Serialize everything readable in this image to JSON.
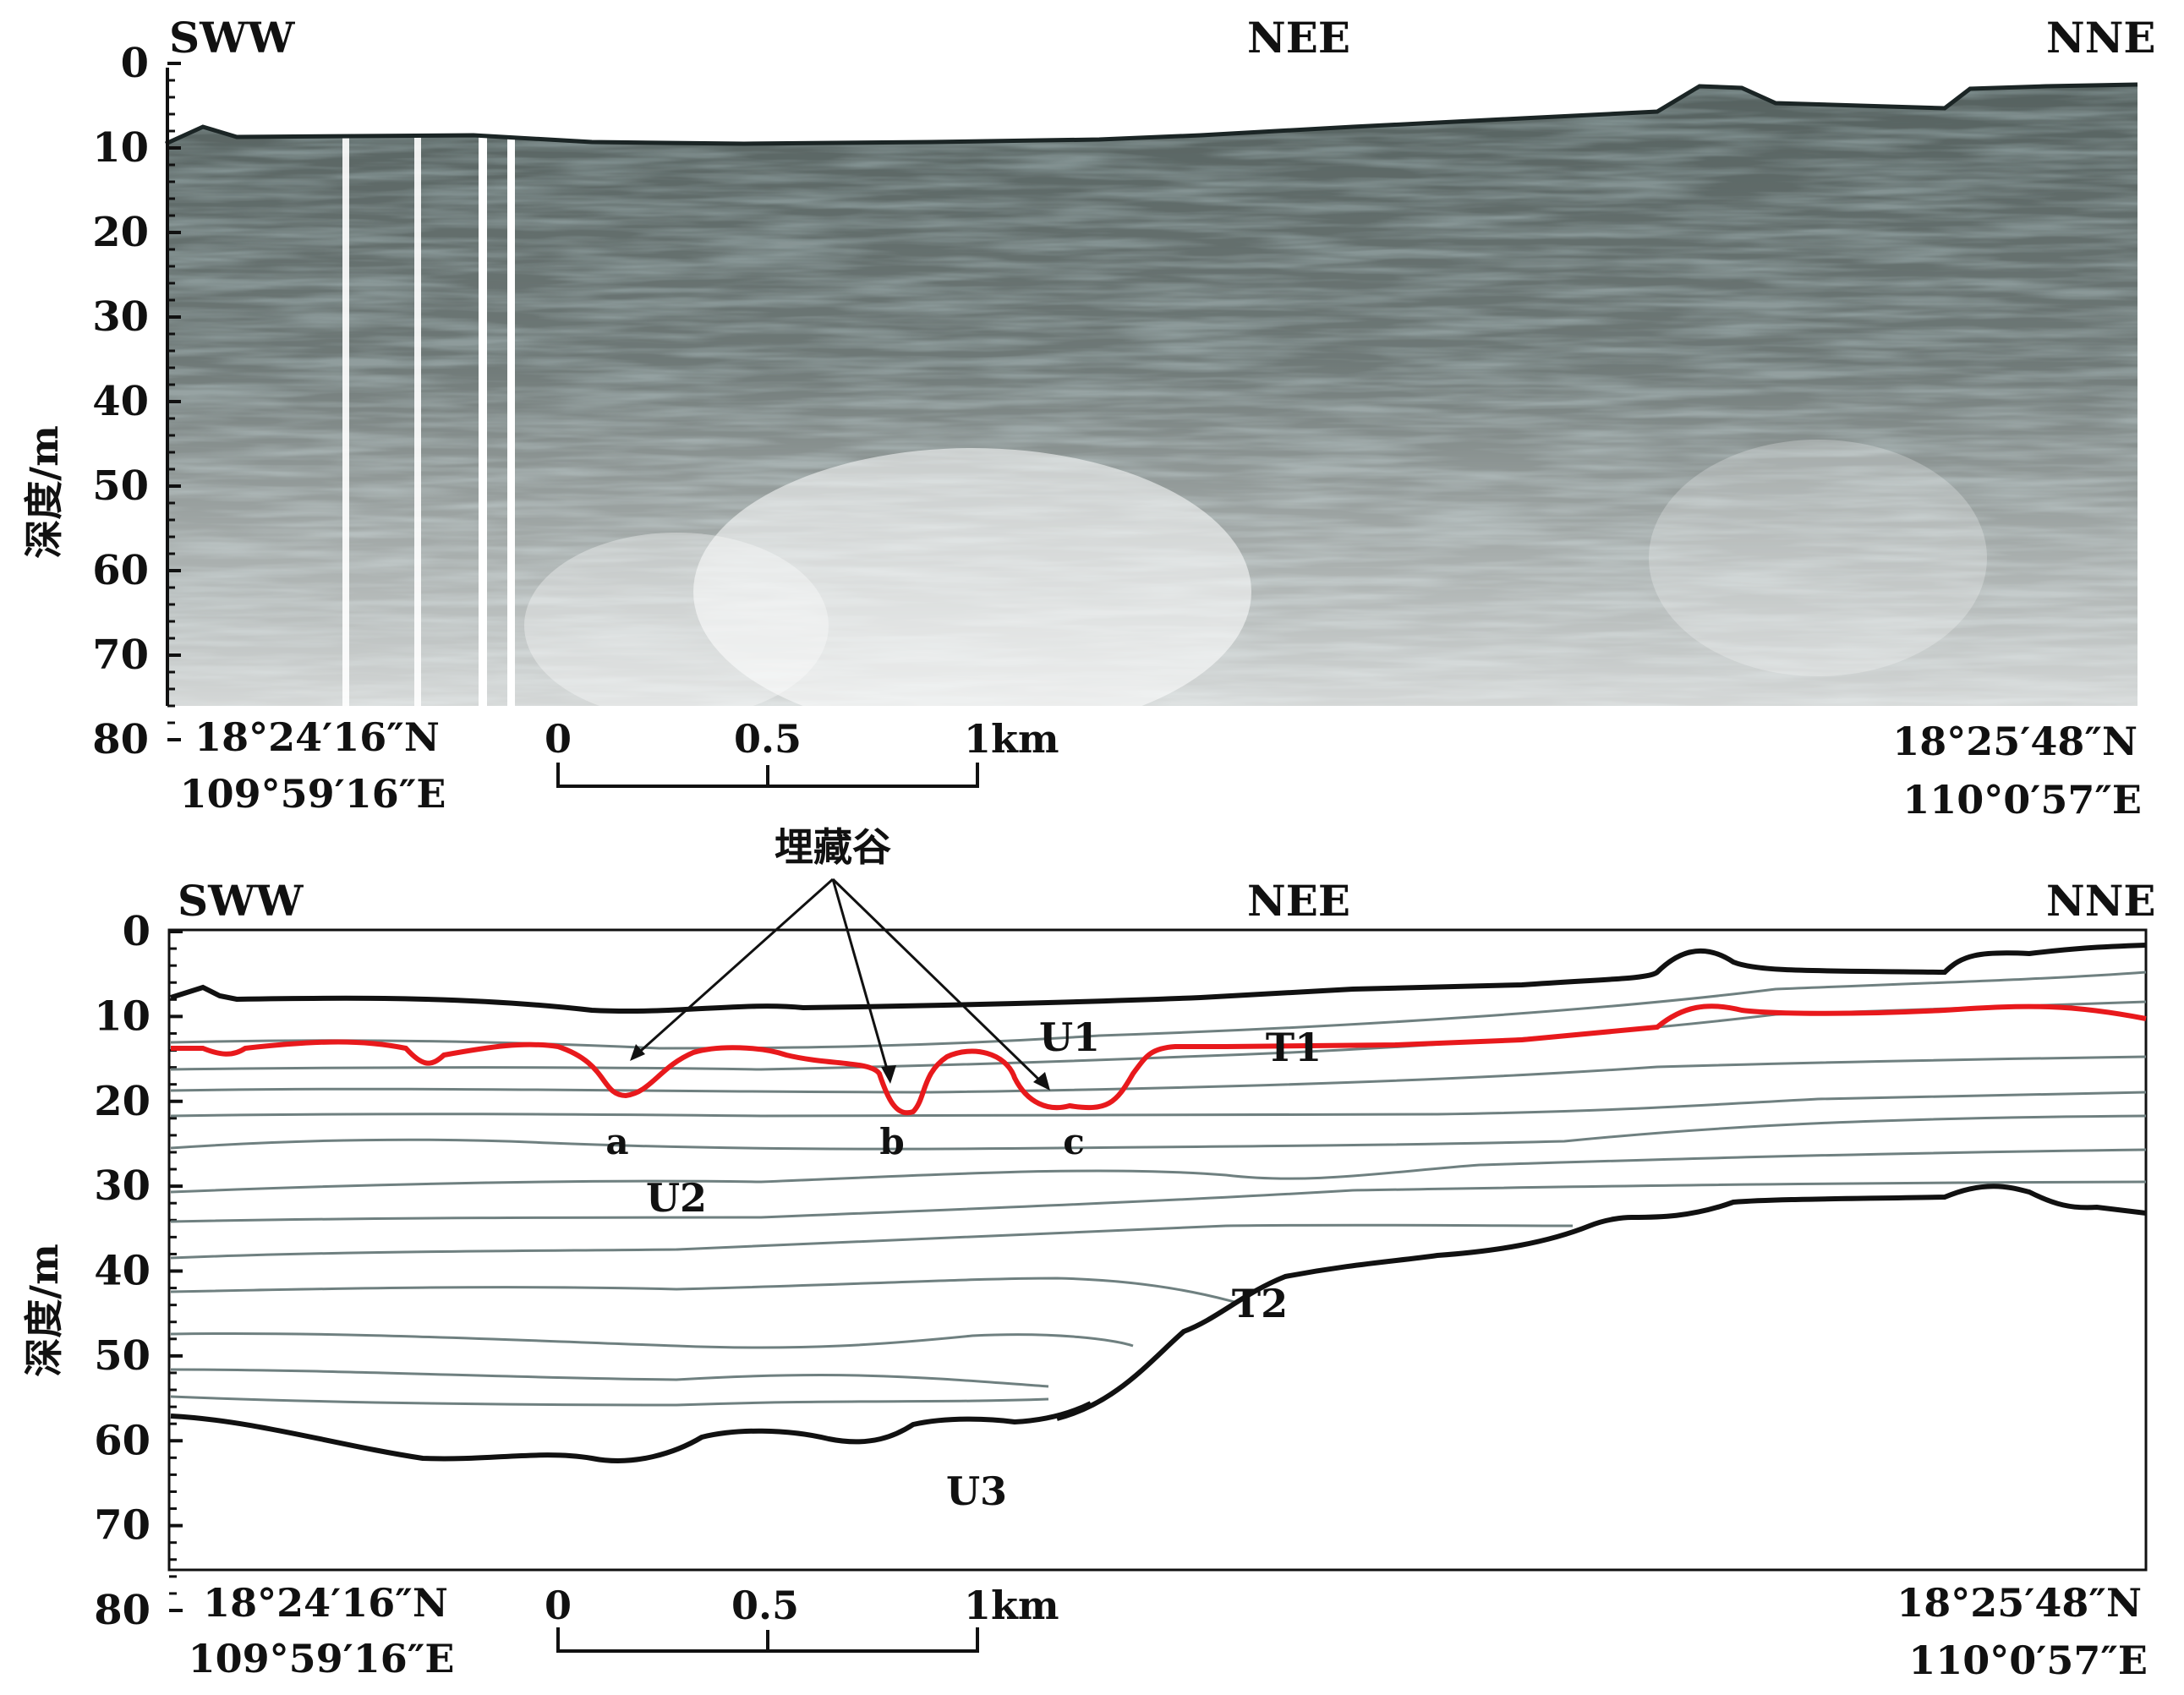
{
  "direction_labels": {
    "left": "SWW",
    "middle": "NEE",
    "right": "NNE"
  },
  "depth_axis": {
    "label": "深度/m",
    "ticks": [
      "0",
      "10",
      "20",
      "30",
      "40",
      "50",
      "60",
      "70",
      "80"
    ]
  },
  "coordinates": {
    "start": {
      "lat": "18°24′16″N",
      "lon": "109°59′16″E"
    },
    "end": {
      "lat": "18°25′48″N",
      "lon": "110°0′57″E"
    }
  },
  "scale_bar": {
    "ticks": [
      "0",
      "0.5",
      "1km"
    ]
  },
  "interpretation": {
    "callout_label": "埋藏谷",
    "valley_labels": [
      "a",
      "b",
      "c"
    ],
    "unit_labels": [
      "U1",
      "U2",
      "U3"
    ],
    "reflector_labels": [
      "T1",
      "T2"
    ]
  },
  "colors": {
    "seismic_dark": "#2f3b3b",
    "seismic_light": "#f4f4f4",
    "reflector_t1": "#e8191c",
    "strata_lines": "#6f8080",
    "boundary_lines": "#111111"
  }
}
